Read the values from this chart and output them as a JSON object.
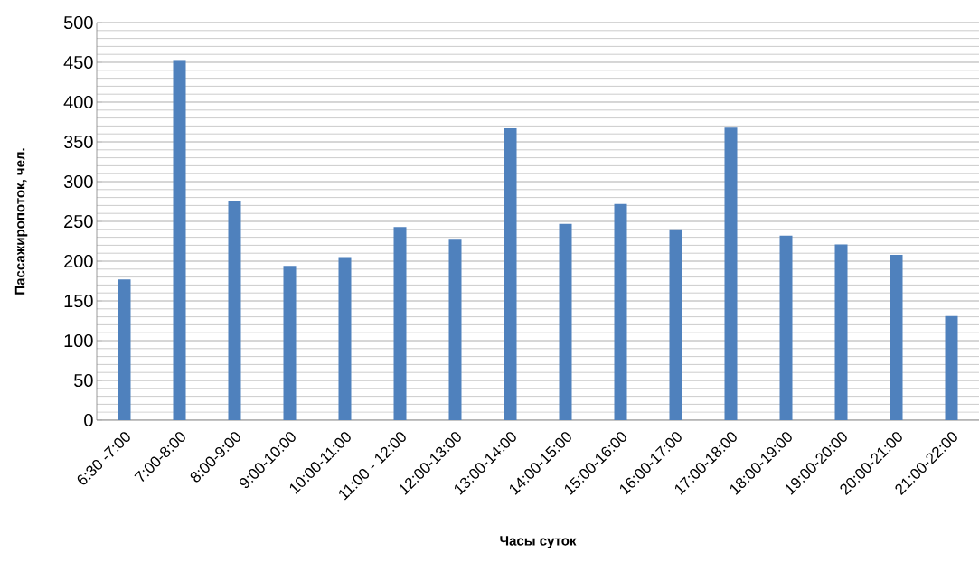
{
  "chart_data": {
    "type": "bar",
    "xlabel": "Часы суток",
    "ylabel": "Пассажиропоток, чел.",
    "categories": [
      "6:30 -7:00",
      "7:00-8:00",
      "8:00-9:00",
      "9:00-10:00",
      "10:00-11:00",
      "11:00 - 12:00",
      "12:00-13:00",
      "13:00-14:00",
      "14:00-15:00",
      "15:00-16:00",
      "16:00-17:00",
      "17:00-18:00",
      "18:00-19:00",
      "19:00-20:00",
      "20:00-21:00",
      "21:00-22:00"
    ],
    "values": [
      177,
      453,
      276,
      194,
      205,
      243,
      227,
      367,
      247,
      272,
      240,
      368,
      232,
      221,
      208,
      131
    ],
    "color": "#4f81bd",
    "ylim": [
      0,
      500
    ],
    "yticks": [
      0,
      50,
      100,
      150,
      200,
      250,
      300,
      350,
      400,
      450,
      500
    ],
    "grid": "y"
  }
}
